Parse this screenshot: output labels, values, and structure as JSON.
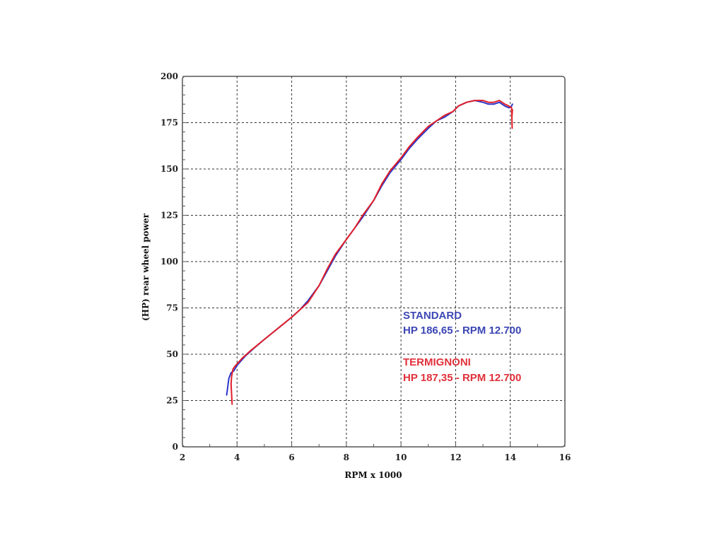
{
  "chart_data": {
    "type": "line",
    "xlabel": "RPM x 1000",
    "ylabel": "(HP) rear wheel power",
    "xlim": [
      2,
      16
    ],
    "ylim": [
      0,
      200
    ],
    "xticks": [
      2,
      4,
      6,
      8,
      10,
      12,
      14,
      16
    ],
    "yticks": [
      0,
      25,
      50,
      75,
      100,
      125,
      150,
      175,
      200
    ],
    "grid": true,
    "grid_style": "dashed",
    "annotations": [
      {
        "text": "STANDARD",
        "color": "#3c46b4"
      },
      {
        "text": "HP 186,65 - RPM 12.700",
        "color": "#3c46b4"
      },
      {
        "text": "TERMIGNONI",
        "color": "#e0303a"
      },
      {
        "text": "HP 187,35 - RPM 12.700",
        "color": "#e0303a"
      }
    ],
    "series": [
      {
        "name": "STANDARD",
        "color": "#2b35c8",
        "x": [
          3.62,
          3.7,
          3.78,
          3.88,
          4.0,
          4.3,
          4.6,
          5.0,
          5.5,
          6.0,
          6.3,
          6.6,
          7.0,
          7.3,
          7.6,
          8.0,
          8.3,
          8.6,
          9.0,
          9.3,
          9.6,
          10.0,
          10.3,
          10.6,
          11.0,
          11.3,
          11.6,
          11.9,
          12.1,
          12.4,
          12.7,
          13.0,
          13.2,
          13.4,
          13.6,
          13.8,
          13.95,
          14.05,
          14.08
        ],
        "y": [
          28,
          37,
          40,
          41,
          44,
          49,
          53,
          58,
          64,
          70,
          74,
          79,
          87,
          95,
          103,
          112,
          118,
          124,
          133,
          141,
          148,
          155,
          161,
          166,
          172,
          176,
          178,
          181,
          184,
          186,
          187,
          186,
          185,
          185,
          186,
          184,
          183,
          184,
          185
        ]
      },
      {
        "name": "TERMIGNONI",
        "color": "#e0202a",
        "x": [
          3.82,
          3.8,
          3.78,
          3.8,
          3.85,
          3.95,
          4.2,
          4.5,
          5.0,
          5.5,
          6.0,
          6.3,
          6.6,
          7.0,
          7.3,
          7.6,
          8.0,
          8.3,
          8.6,
          9.0,
          9.3,
          9.6,
          10.0,
          10.3,
          10.6,
          11.0,
          11.3,
          11.6,
          11.9,
          12.1,
          12.4,
          12.7,
          13.0,
          13.2,
          13.4,
          13.6,
          13.8,
          13.95,
          14.05,
          14.07,
          14.06,
          14.08
        ],
        "y": [
          23,
          28,
          34,
          38,
          42,
          44,
          48,
          52,
          58,
          64,
          70,
          74,
          78,
          87,
          96,
          104,
          112,
          118,
          125,
          133,
          142,
          149,
          156,
          162,
          167,
          173,
          176,
          179,
          181,
          184,
          186,
          187,
          187,
          186,
          186,
          187,
          185,
          184,
          183,
          172,
          178,
          182
        ]
      }
    ]
  }
}
